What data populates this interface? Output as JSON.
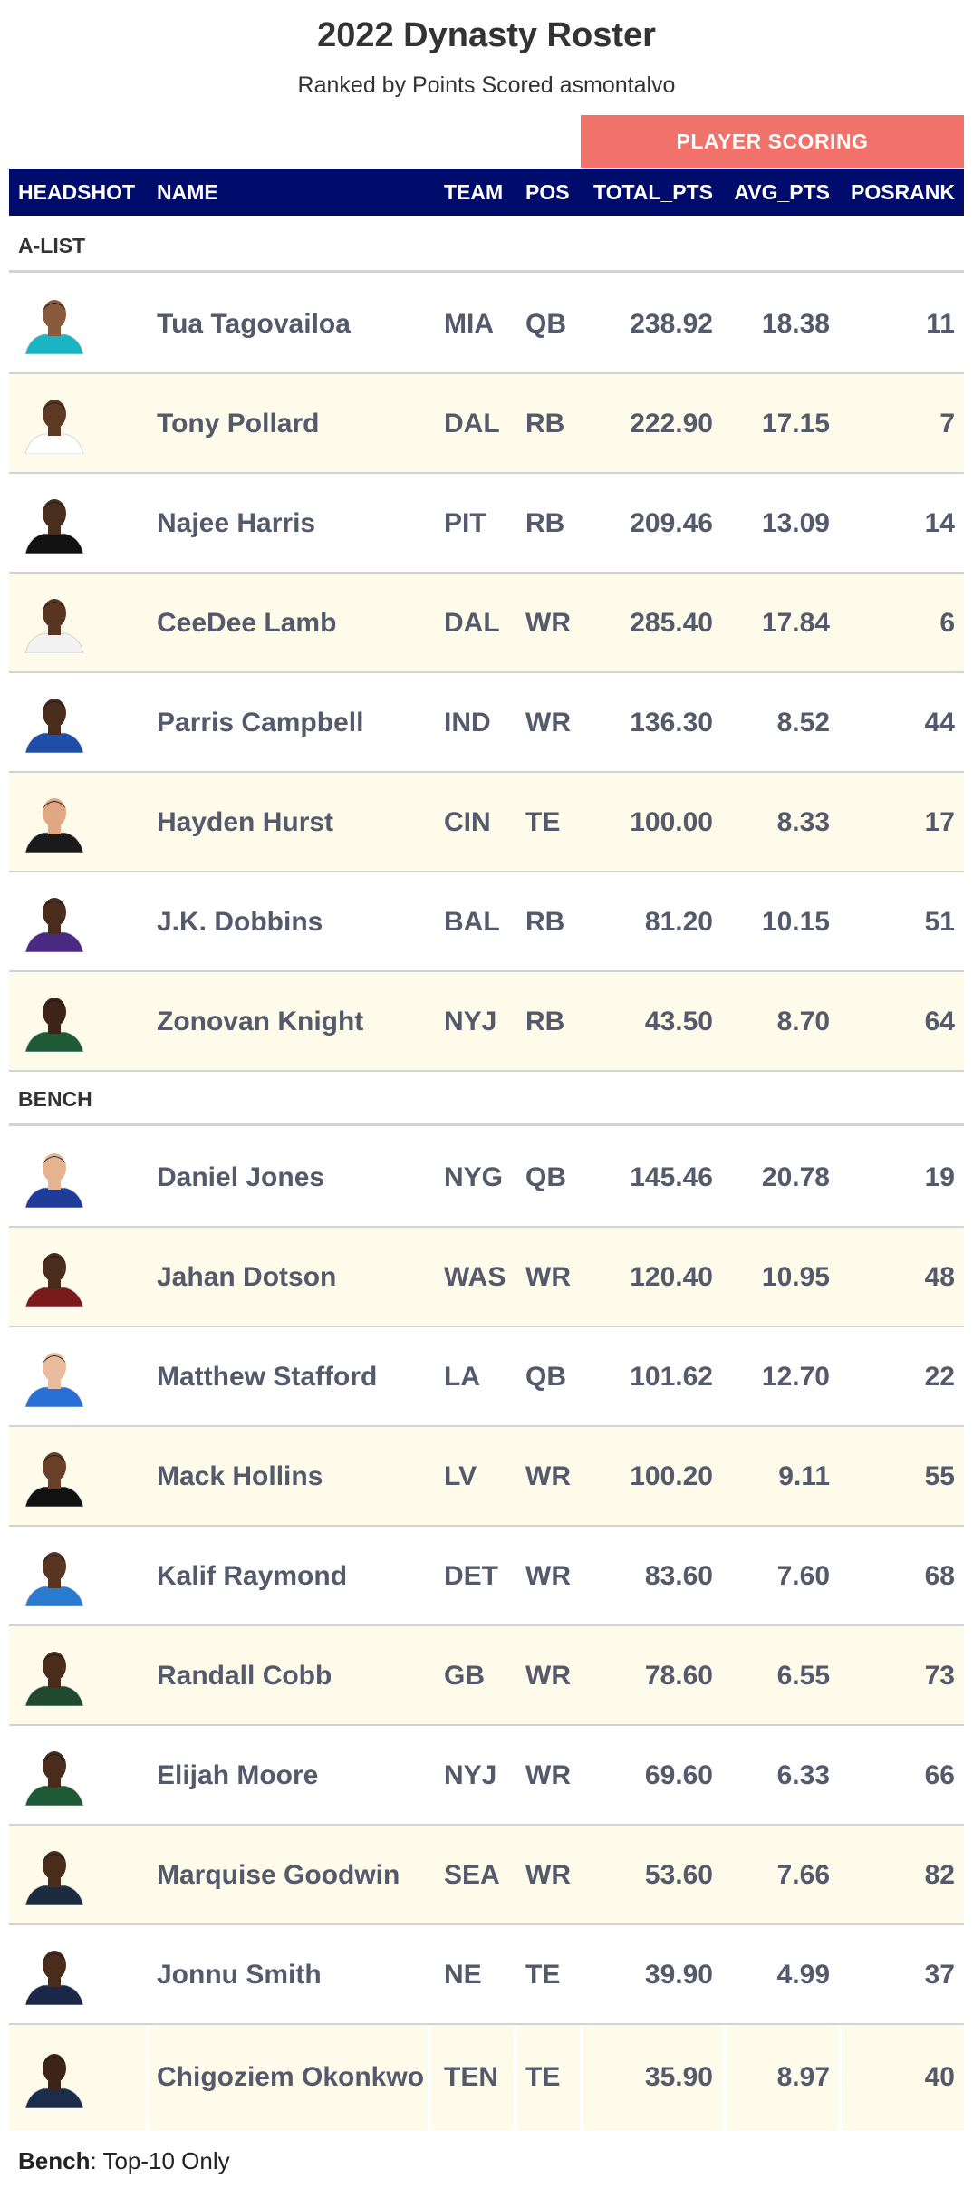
{
  "header": {
    "title": "2022 Dynasty Roster",
    "subtitle": "Ranked by Points Scored asmontalvo",
    "spanner": "PLAYER SCORING"
  },
  "columns": {
    "headshot": "HEADSHOT",
    "name": "NAME",
    "team": "TEAM",
    "pos": "POS",
    "total": "TOTAL_PTS",
    "avg": "AVG_PTS",
    "rank": "POSRANK"
  },
  "groups": [
    {
      "label": "A-LIST",
      "rows": [
        {
          "name": "Tua Tagovailoa",
          "team": "MIA",
          "pos": "QB",
          "total": "238.92",
          "avg": "18.38",
          "rank": "11",
          "jersey": "#19b5c4",
          "skin": "#8a5a3c"
        },
        {
          "name": "Tony Pollard",
          "team": "DAL",
          "pos": "RB",
          "total": "222.90",
          "avg": "17.15",
          "rank": "7",
          "jersey": "#ffffff",
          "skin": "#5e3a24"
        },
        {
          "name": "Najee Harris",
          "team": "PIT",
          "pos": "RB",
          "total": "209.46",
          "avg": "13.09",
          "rank": "14",
          "jersey": "#111111",
          "skin": "#4a2e1e"
        },
        {
          "name": "CeeDee Lamb",
          "team": "DAL",
          "pos": "WR",
          "total": "285.40",
          "avg": "17.84",
          "rank": "6",
          "jersey": "#f2f2f2",
          "skin": "#5a3522"
        },
        {
          "name": "Parris Campbell",
          "team": "IND",
          "pos": "WR",
          "total": "136.30",
          "avg": "8.52",
          "rank": "44",
          "jersey": "#1e4ea8",
          "skin": "#4a2c1c"
        },
        {
          "name": "Hayden Hurst",
          "team": "CIN",
          "pos": "TE",
          "total": "100.00",
          "avg": "8.33",
          "rank": "17",
          "jersey": "#1a1a1a",
          "skin": "#e0a882"
        },
        {
          "name": "J.K. Dobbins",
          "team": "BAL",
          "pos": "RB",
          "total": "81.20",
          "avg": "10.15",
          "rank": "51",
          "jersey": "#4b2a86",
          "skin": "#4a2c1c"
        },
        {
          "name": "Zonovan Knight",
          "team": "NYJ",
          "pos": "RB",
          "total": "43.50",
          "avg": "8.70",
          "rank": "64",
          "jersey": "#1e5a36",
          "skin": "#3e2418"
        }
      ]
    },
    {
      "label": "BENCH",
      "rows": [
        {
          "name": "Daniel Jones",
          "team": "NYG",
          "pos": "QB",
          "total": "145.46",
          "avg": "20.78",
          "rank": "19",
          "jersey": "#1f3c9b",
          "skin": "#e6b491"
        },
        {
          "name": "Jahan Dotson",
          "team": "WAS",
          "pos": "WR",
          "total": "120.40",
          "avg": "10.95",
          "rank": "48",
          "jersey": "#7a1a1a",
          "skin": "#4a2c1c"
        },
        {
          "name": "Matthew Stafford",
          "team": "LA",
          "pos": "QB",
          "total": "101.62",
          "avg": "12.70",
          "rank": "22",
          "jersey": "#2a6fd6",
          "skin": "#e8bc9c"
        },
        {
          "name": "Mack Hollins",
          "team": "LV",
          "pos": "WR",
          "total": "100.20",
          "avg": "9.11",
          "rank": "55",
          "jersey": "#111111",
          "skin": "#6a4028"
        },
        {
          "name": "Kalif Raymond",
          "team": "DET",
          "pos": "WR",
          "total": "83.60",
          "avg": "7.60",
          "rank": "68",
          "jersey": "#2a7bd0",
          "skin": "#5a3522"
        },
        {
          "name": "Randall Cobb",
          "team": "GB",
          "pos": "WR",
          "total": "78.60",
          "avg": "6.55",
          "rank": "73",
          "jersey": "#1f4a2e",
          "skin": "#4a2c1c"
        },
        {
          "name": "Elijah Moore",
          "team": "NYJ",
          "pos": "WR",
          "total": "69.60",
          "avg": "6.33",
          "rank": "66",
          "jersey": "#1e5a36",
          "skin": "#4a2c1c"
        },
        {
          "name": "Marquise Goodwin",
          "team": "SEA",
          "pos": "WR",
          "total": "53.60",
          "avg": "7.66",
          "rank": "82",
          "jersey": "#1c2c40",
          "skin": "#4a2c1c"
        },
        {
          "name": "Jonnu Smith",
          "team": "NE",
          "pos": "TE",
          "total": "39.90",
          "avg": "4.99",
          "rank": "37",
          "jersey": "#1b2748",
          "skin": "#4a2c1c"
        },
        {
          "name": "Chigoziem Okonkwo",
          "team": "TEN",
          "pos": "TE",
          "total": "35.90",
          "avg": "8.97",
          "rank": "40",
          "jersey": "#1b2d4a",
          "skin": "#3e2418"
        }
      ]
    }
  ],
  "footnote": {
    "bold": "Bench",
    "rest": ": Top-10 Only"
  }
}
